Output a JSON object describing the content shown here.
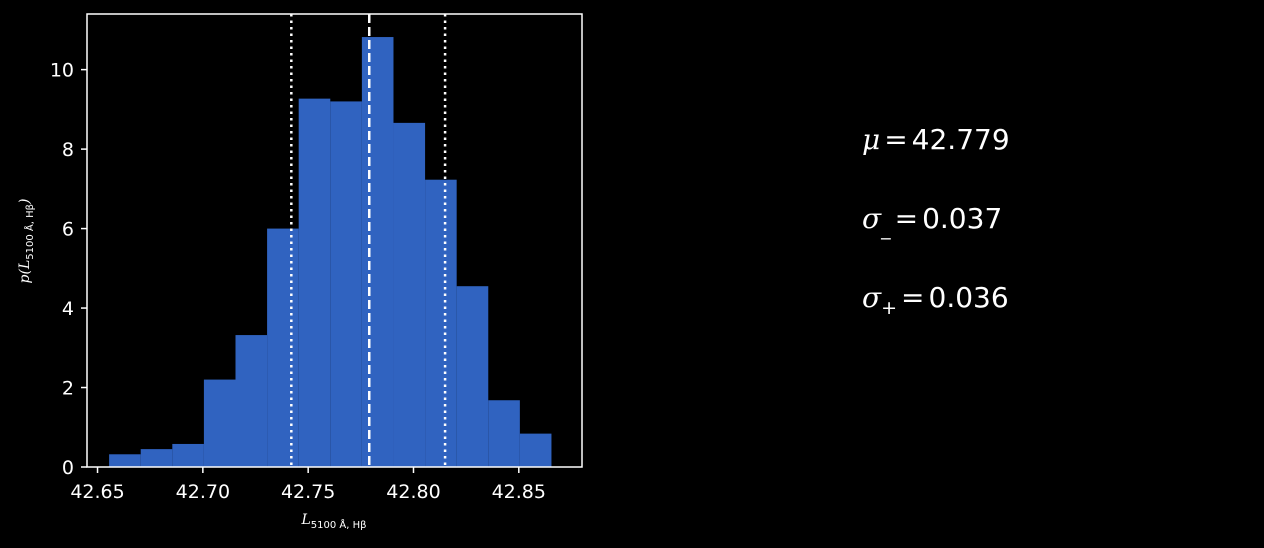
{
  "chart_data": {
    "type": "bar",
    "subtype": "histogram",
    "bar_color": "#3063c0",
    "background": "#000000",
    "foreground": "#ffffff",
    "xlabel": {
      "main": "L",
      "sub": "5100 Å, Hβ"
    },
    "ylabel": {
      "main": "p(L",
      "sub": "5100 Å, Hβ",
      "close": ")"
    },
    "xlim": [
      42.645,
      42.88
    ],
    "ylim": [
      0,
      11.4
    ],
    "xticks": [
      42.65,
      42.7,
      42.75,
      42.8,
      42.85
    ],
    "xtick_labels": [
      "42.65",
      "42.70",
      "42.75",
      "42.80",
      "42.85"
    ],
    "yticks": [
      0,
      2,
      4,
      6,
      8,
      10
    ],
    "ytick_labels": [
      "0",
      "2",
      "4",
      "6",
      "8",
      "10"
    ],
    "bins": [
      {
        "x0": 42.6555,
        "x1": 42.6705,
        "value": 0.32
      },
      {
        "x0": 42.6705,
        "x1": 42.6855,
        "value": 0.45
      },
      {
        "x0": 42.6855,
        "x1": 42.7005,
        "value": 0.58
      },
      {
        "x0": 42.7005,
        "x1": 42.7155,
        "value": 2.2
      },
      {
        "x0": 42.7155,
        "x1": 42.7305,
        "value": 3.32
      },
      {
        "x0": 42.7305,
        "x1": 42.7455,
        "value": 6.0
      },
      {
        "x0": 42.7455,
        "x1": 42.7605,
        "value": 9.27
      },
      {
        "x0": 42.7605,
        "x1": 42.7755,
        "value": 9.2
      },
      {
        "x0": 42.7755,
        "x1": 42.7905,
        "value": 10.82
      },
      {
        "x0": 42.7905,
        "x1": 42.8055,
        "value": 8.66
      },
      {
        "x0": 42.8055,
        "x1": 42.8205,
        "value": 7.23
      },
      {
        "x0": 42.8205,
        "x1": 42.8355,
        "value": 4.55
      },
      {
        "x0": 42.8355,
        "x1": 42.8505,
        "value": 1.68
      },
      {
        "x0": 42.8505,
        "x1": 42.8655,
        "value": 0.84
      }
    ],
    "vlines": [
      {
        "x": 42.742,
        "style": "dotted"
      },
      {
        "x": 42.779,
        "style": "dashed"
      },
      {
        "x": 42.815,
        "style": "dotted"
      }
    ],
    "grid": false
  },
  "stats": [
    {
      "symbol": "μ",
      "sub": "",
      "value": "42.779"
    },
    {
      "symbol": "σ",
      "sub": "_",
      "value": "0.037"
    },
    {
      "symbol": "σ",
      "sub": "+",
      "value": "0.036"
    }
  ]
}
